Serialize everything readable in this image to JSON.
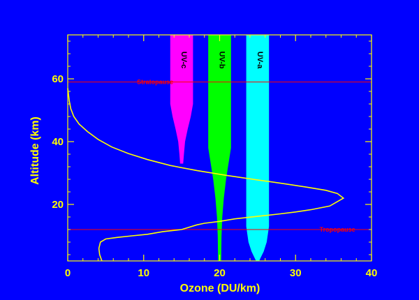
{
  "chart_data": {
    "type": "line",
    "xlabel": "Ozone (DU/km)",
    "ylabel": "Altitude (km)",
    "xlim": [
      0,
      40
    ],
    "ylim": [
      2,
      74
    ],
    "xticks": [
      0,
      10,
      20,
      30,
      40
    ],
    "yticks": [
      20,
      40,
      60
    ],
    "grid": false,
    "colors": {
      "background": "#0000ff",
      "axis": "#ffff00",
      "ozone_line": "#ffff00",
      "ref_lines": "#ff0000"
    },
    "series": [
      {
        "x": [
          4.5,
          4.2,
          4.1,
          4.3,
          5.0,
          6.5,
          8.5,
          10.5,
          12.5,
          15.0,
          17.0,
          18.0,
          20.0,
          22.0,
          25.0,
          28.0,
          30.0,
          32.0,
          34.5,
          36.3,
          35.5,
          34.0,
          31.5,
          28.5,
          25.0,
          21.0,
          17.0,
          13.5,
          10.5,
          8.0,
          5.8,
          4.0,
          2.6,
          1.5,
          0.8,
          0.4,
          0.2,
          0.1,
          0.0
        ],
        "y": [
          2.0,
          4.0,
          6.0,
          8.0,
          9.0,
          9.5,
          10.0,
          10.5,
          11.3,
          12.0,
          13.5,
          14.0,
          14.6,
          15.4,
          16.2,
          17.0,
          17.6,
          18.3,
          19.5,
          22.0,
          23.5,
          24.5,
          25.5,
          26.6,
          27.8,
          29.2,
          30.8,
          32.4,
          34.3,
          36.2,
          38.3,
          40.7,
          43.2,
          45.6,
          48.0,
          50.5,
          53.0,
          55.0,
          57.0
        ]
      }
    ],
    "reference_lines": [
      {
        "y": 59,
        "label": "Stratopause"
      },
      {
        "y": 12,
        "label": "Tropopause"
      }
    ],
    "bands": [
      {
        "label": "UV-c",
        "color": "#ff00ff",
        "center": 15,
        "profile": [
          {
            "y": 74,
            "half_width": 1.5
          },
          {
            "y": 52,
            "half_width": 1.5
          },
          {
            "y": 48,
            "half_width": 1.2
          },
          {
            "y": 44,
            "half_width": 0.8
          },
          {
            "y": 40,
            "half_width": 0.45
          },
          {
            "y": 36,
            "half_width": 0.3
          },
          {
            "y": 33,
            "half_width": 0.2
          }
        ]
      },
      {
        "label": "UV-b",
        "color": "#00ff00",
        "center": 20,
        "profile": [
          {
            "y": 74,
            "half_width": 1.5
          },
          {
            "y": 38,
            "half_width": 1.5
          },
          {
            "y": 32,
            "half_width": 1.1
          },
          {
            "y": 28,
            "half_width": 0.85
          },
          {
            "y": 22,
            "half_width": 0.55
          },
          {
            "y": 16,
            "half_width": 0.35
          },
          {
            "y": 10,
            "half_width": 0.25
          },
          {
            "y": 2,
            "half_width": 0.2
          }
        ]
      },
      {
        "label": "UV-a",
        "color": "#00ffff",
        "center": 25,
        "profile": [
          {
            "y": 74,
            "half_width": 1.5
          },
          {
            "y": 13,
            "half_width": 1.5
          },
          {
            "y": 8,
            "half_width": 1.2
          },
          {
            "y": 5,
            "half_width": 0.8
          },
          {
            "y": 3,
            "half_width": 0.4
          },
          {
            "y": 2,
            "half_width": 0.2
          }
        ]
      }
    ]
  }
}
